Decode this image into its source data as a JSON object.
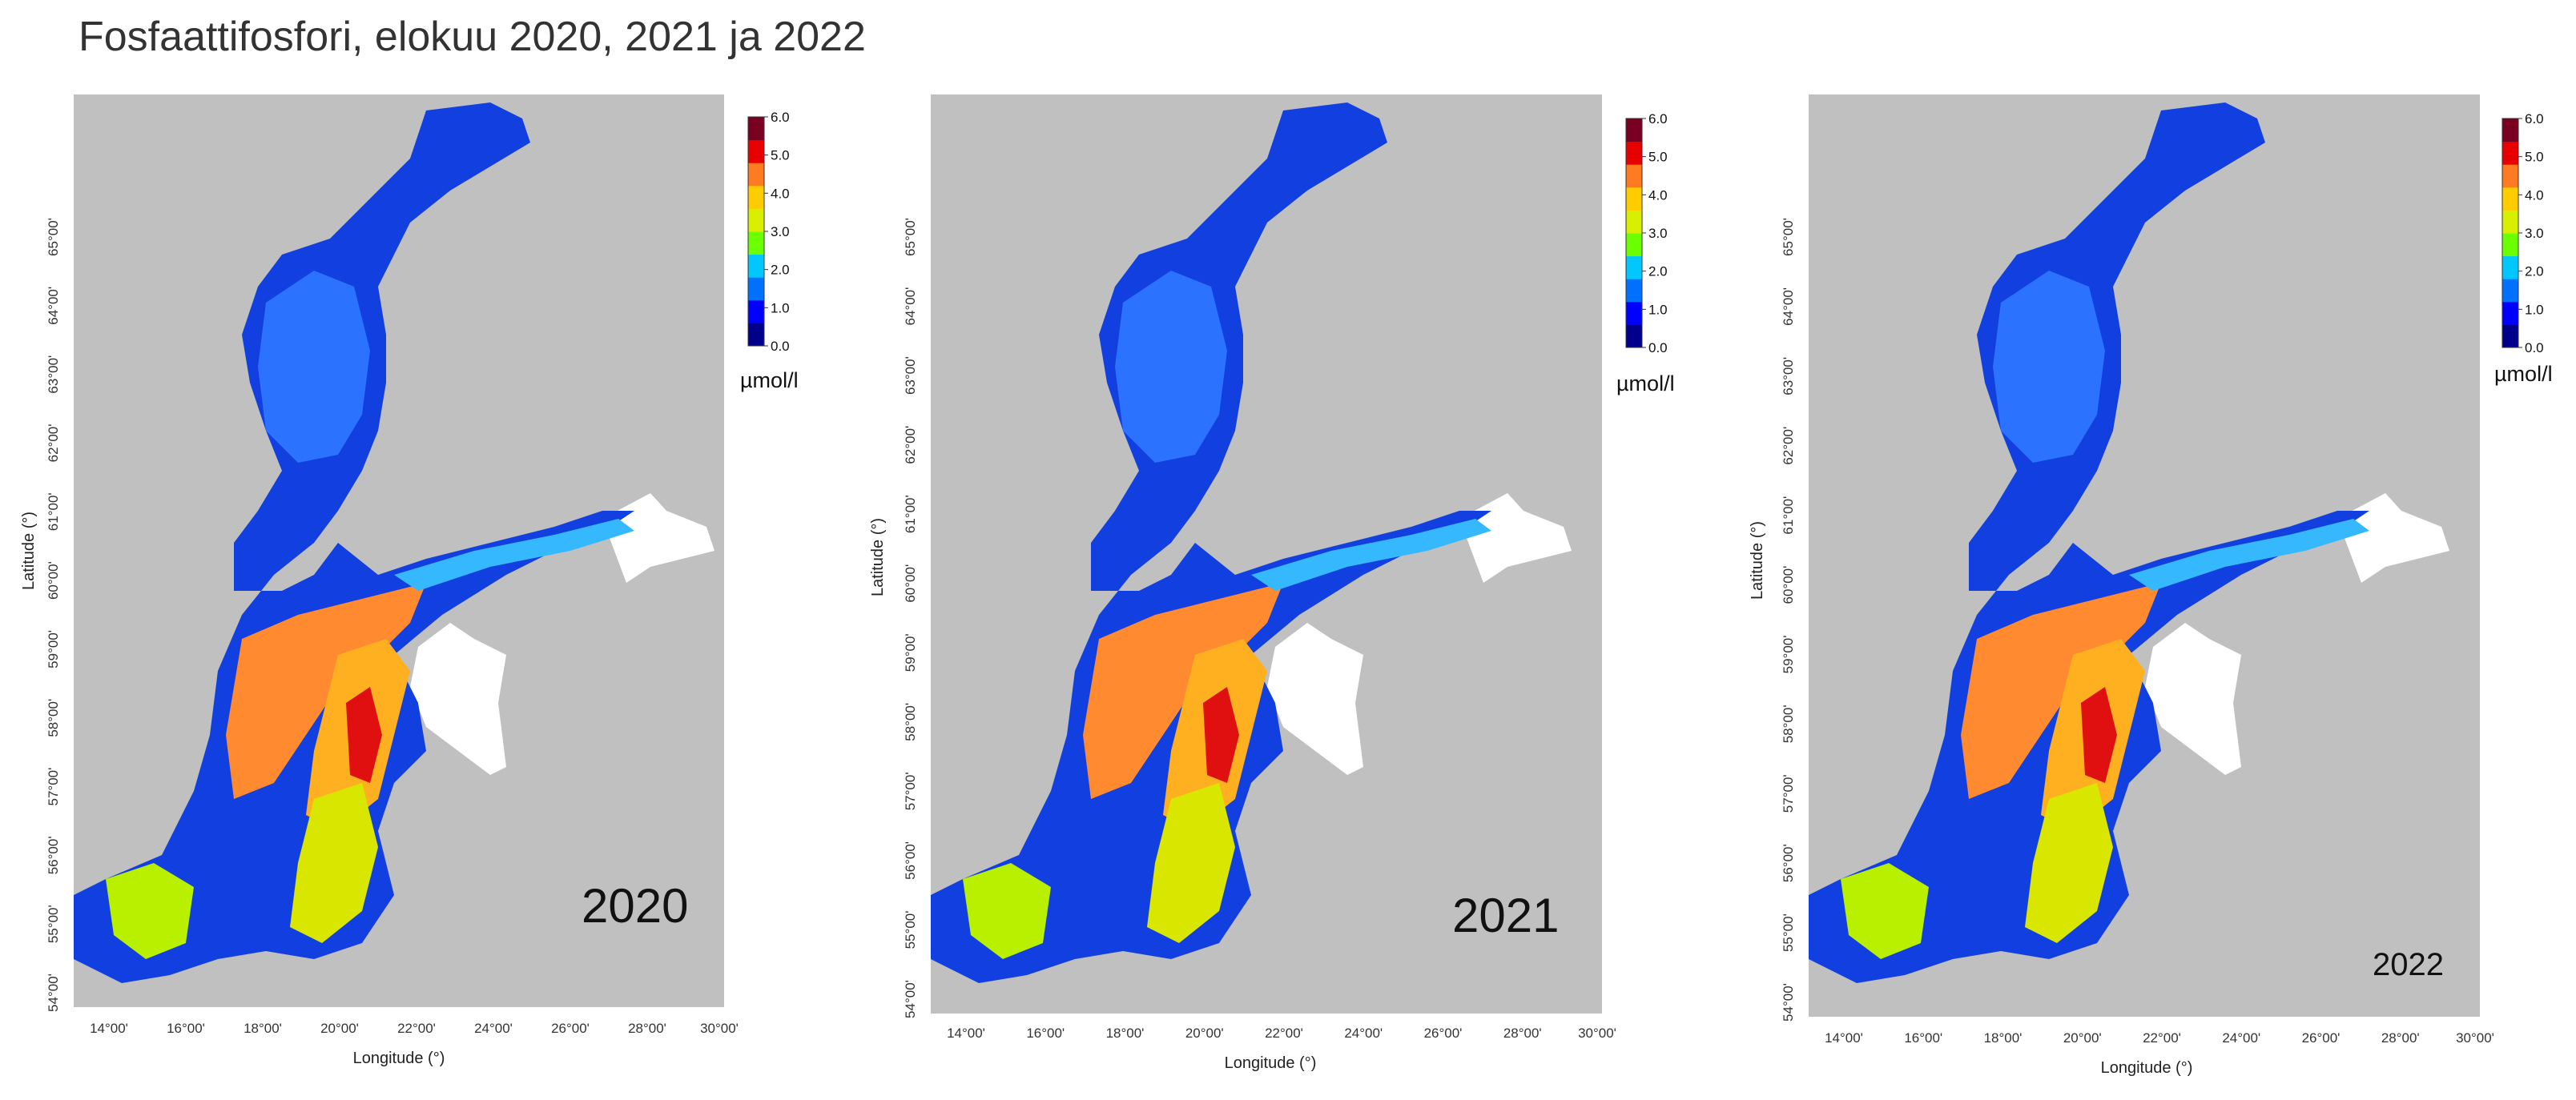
{
  "title": "Fosfaattifosfori, elokuu 2020, 2021 ja 2022",
  "colors": {
    "background_sea": "#c0c0c0",
    "land_white": "#ffffff",
    "scale": [
      "#00008b",
      "#0000ff",
      "#0070ff",
      "#00c8ff",
      "#6cff00",
      "#d8f000",
      "#ffcc00",
      "#ff7a20",
      "#e60000",
      "#7a0022"
    ]
  },
  "shared_axes": {
    "x_title": "Longitude (°)",
    "y_title": "Latitude (°)",
    "x_ticks": [
      "14°00'",
      "16°00'",
      "18°00'",
      "20°00'",
      "22°00'",
      "24°00'",
      "26°00'",
      "28°00'",
      "30°00'"
    ],
    "y_ticks": [
      "54°00'",
      "55°00'",
      "56°00'",
      "57°00'",
      "58°00'",
      "59°00'",
      "60°00'",
      "61°00'",
      "62°00'",
      "63°00'",
      "64°00'",
      "65°00'"
    ]
  },
  "colorbar": {
    "ticks": [
      "0.0",
      "1.0",
      "2.0",
      "3.0",
      "4.0",
      "5.0",
      "6.0"
    ],
    "unit": "µmol/l"
  },
  "panels": [
    {
      "year": "2020"
    },
    {
      "year": "2021"
    },
    {
      "year": "2022"
    }
  ]
}
